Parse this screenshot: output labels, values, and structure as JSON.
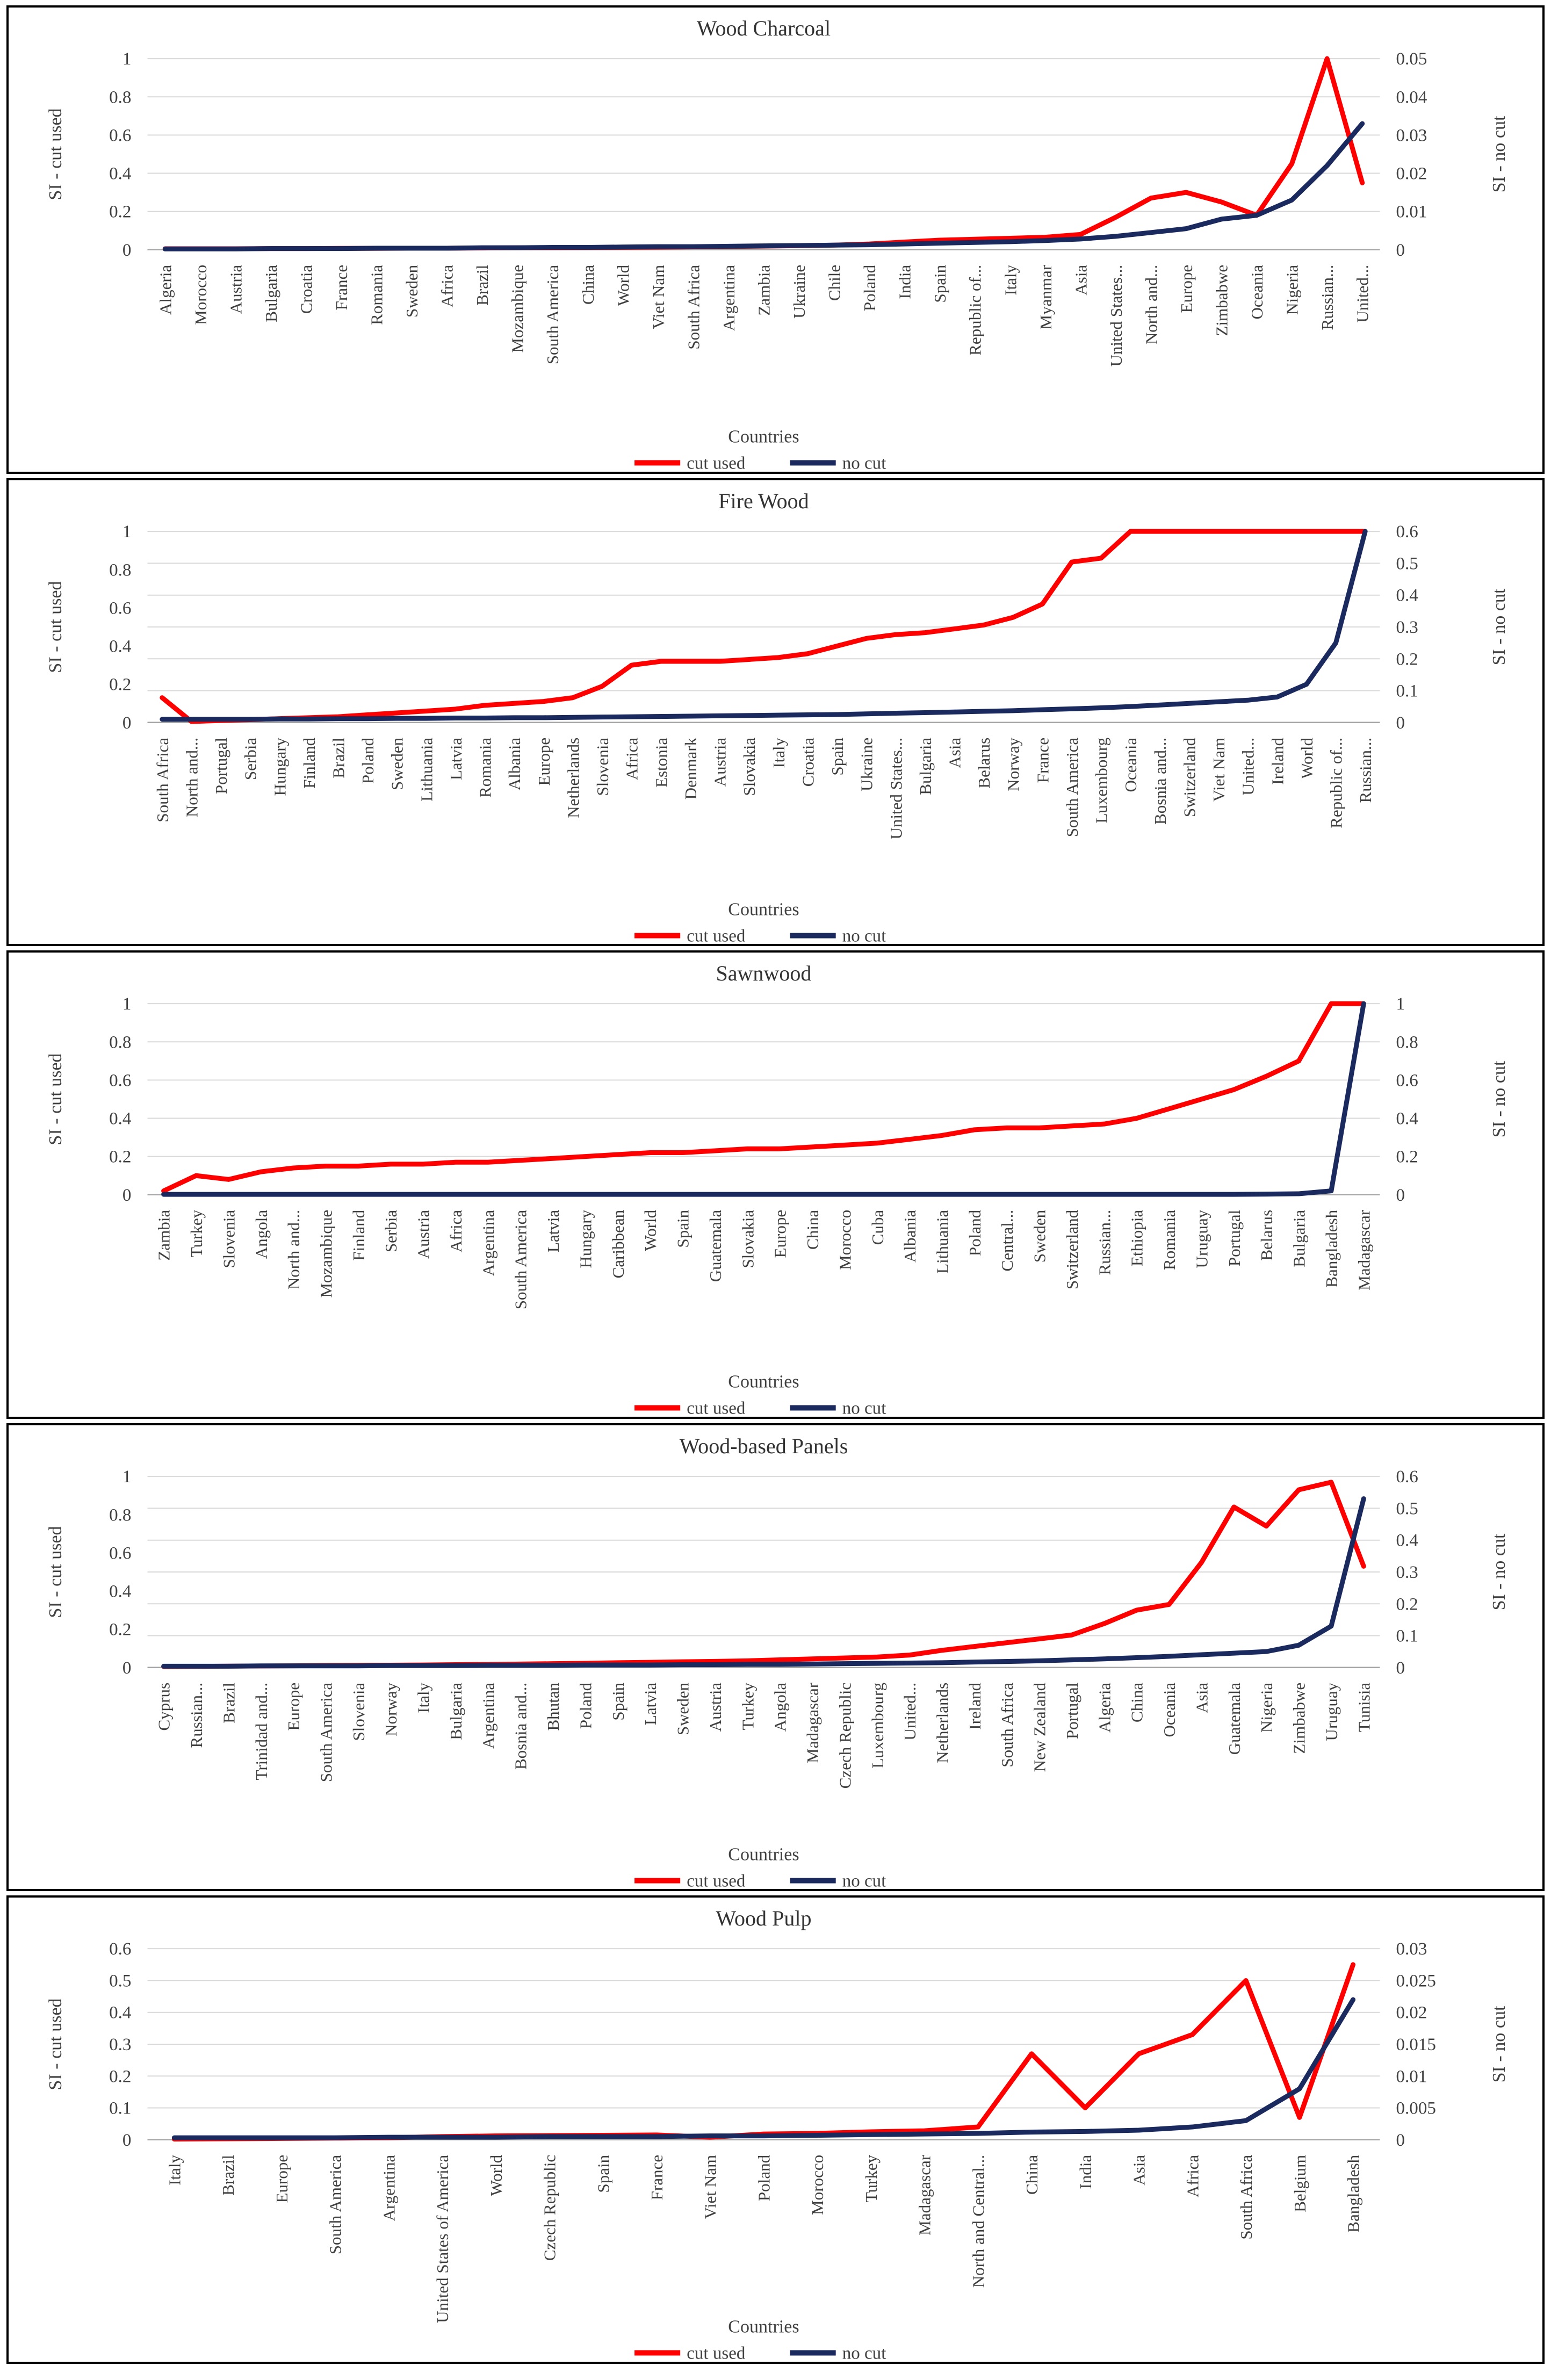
{
  "theme": {
    "background": "#ffffff",
    "panel_border": "#000000",
    "grid_color": "#d9d9d9",
    "axis_line_color": "#a6a6a6",
    "text_color": "#404040",
    "cut_used_color": "#ff0000",
    "no_cut_color": "#1b2a5e"
  },
  "chart_data": [
    {
      "type": "line",
      "title": "Wood Charcoal",
      "x_label": "Countries",
      "legend": [
        "cut used",
        "no cut"
      ],
      "left_axis": {
        "label": "SI - cut used",
        "max": 1,
        "ticks": [
          0,
          0.2,
          0.4,
          0.6,
          0.8,
          1
        ]
      },
      "right_axis": {
        "label": "SI - no cut",
        "max": 0.05,
        "ticks": [
          0,
          0.01,
          0.02,
          0.03,
          0.04,
          0.05
        ]
      },
      "categories": [
        "Algeria",
        "Morocco",
        "Austria",
        "Bulgaria",
        "Croatia",
        "France",
        "Romania",
        "Sweden",
        "Africa",
        "Brazil",
        "Mozambique",
        "South America",
        "China",
        "World",
        "Viet Nam",
        "South Africa",
        "Argentina",
        "Zambia",
        "Ukraine",
        "Chile",
        "Poland",
        "India",
        "Spain",
        "Republic of...",
        "Italy",
        "Myanmar",
        "Asia",
        "United States...",
        "North and...",
        "Europe",
        "Zimbabwe",
        "Oceania",
        "Nigeria",
        "Russian...",
        "United..."
      ],
      "series": [
        {
          "name": "cut used",
          "axis": "left",
          "color": "#ff0000",
          "values": [
            0.005,
            0.005,
            0.005,
            0.006,
            0.006,
            0.007,
            0.007,
            0.008,
            0.008,
            0.009,
            0.01,
            0.01,
            0.011,
            0.012,
            0.013,
            0.015,
            0.017,
            0.019,
            0.021,
            0.024,
            0.03,
            0.04,
            0.05,
            0.055,
            0.06,
            0.065,
            0.08,
            0.17,
            0.27,
            0.3,
            0.25,
            0.18,
            0.45,
            1,
            0.35
          ]
        },
        {
          "name": "no cut",
          "axis": "right",
          "color": "#1b2a5e",
          "values": [
            0.0002,
            0.0002,
            0.0002,
            0.0003,
            0.0003,
            0.0003,
            0.0004,
            0.0004,
            0.0004,
            0.0005,
            0.0005,
            0.0006,
            0.0006,
            0.0007,
            0.0008,
            0.0008,
            0.0009,
            0.001,
            0.0011,
            0.0012,
            0.0013,
            0.0015,
            0.0017,
            0.0019,
            0.0021,
            0.0024,
            0.0028,
            0.0035,
            0.0045,
            0.0055,
            0.008,
            0.009,
            0.013,
            0.022,
            0.033
          ]
        }
      ]
    },
    {
      "type": "line",
      "title": "Fire Wood",
      "x_label": "Countries",
      "legend": [
        "cut used",
        "no cut"
      ],
      "left_axis": {
        "label": "SI - cut used",
        "max": 1,
        "ticks": [
          0,
          0.2,
          0.4,
          0.6,
          0.8,
          1
        ]
      },
      "right_axis": {
        "label": "SI - no cut",
        "max": 0.6,
        "ticks": [
          0,
          0.1,
          0.2,
          0.3,
          0.4,
          0.5,
          0.6
        ]
      },
      "categories": [
        "South Africa",
        "North and...",
        "Portugal",
        "Serbia",
        "Hungary",
        "Finland",
        "Brazil",
        "Poland",
        "Sweden",
        "Lithuania",
        "Latvia",
        "Romania",
        "Albania",
        "Europe",
        "Netherlands",
        "Slovenia",
        "Africa",
        "Estonia",
        "Denmark",
        "Austria",
        "Slovakia",
        "Italy",
        "Croatia",
        "Spain",
        "Ukraine",
        "United States...",
        "Bulgaria",
        "Asia",
        "Belarus",
        "Norway",
        "France",
        "South America",
        "Luxembourg",
        "Oceania",
        "Bosnia and...",
        "Switzerland",
        "Viet Nam",
        "United...",
        "Ireland",
        "World",
        "Republic of...",
        "Russian..."
      ],
      "series": [
        {
          "name": "cut used",
          "axis": "left",
          "color": "#ff0000",
          "values": [
            0.13,
            0.005,
            0.01,
            0.015,
            0.02,
            0.025,
            0.03,
            0.04,
            0.05,
            0.06,
            0.07,
            0.09,
            0.1,
            0.11,
            0.13,
            0.19,
            0.3,
            0.32,
            0.32,
            0.32,
            0.33,
            0.34,
            0.36,
            0.4,
            0.44,
            0.46,
            0.47,
            0.49,
            0.51,
            0.55,
            0.62,
            0.84,
            0.86,
            1,
            1,
            1,
            1,
            1,
            1,
            1,
            1,
            1
          ]
        },
        {
          "name": "no cut",
          "axis": "right",
          "color": "#1b2a5e",
          "values": [
            0.01,
            0.01,
            0.01,
            0.01,
            0.011,
            0.011,
            0.012,
            0.012,
            0.013,
            0.013,
            0.014,
            0.014,
            0.015,
            0.015,
            0.016,
            0.017,
            0.018,
            0.019,
            0.02,
            0.021,
            0.022,
            0.023,
            0.024,
            0.025,
            0.027,
            0.029,
            0.031,
            0.033,
            0.035,
            0.037,
            0.04,
            0.043,
            0.046,
            0.05,
            0.055,
            0.06,
            0.065,
            0.07,
            0.08,
            0.12,
            0.25,
            0.6
          ]
        }
      ]
    },
    {
      "type": "line",
      "title": "Sawnwood",
      "x_label": "Countries",
      "legend": [
        "cut used",
        "no cut"
      ],
      "left_axis": {
        "label": "SI - cut used",
        "max": 1,
        "ticks": [
          0,
          0.2,
          0.4,
          0.6,
          0.8,
          1
        ]
      },
      "right_axis": {
        "label": "SI - no cut",
        "max": 1,
        "ticks": [
          0,
          0.2,
          0.4,
          0.6,
          0.8,
          1
        ]
      },
      "categories": [
        "Zambia",
        "Turkey",
        "Slovenia",
        "Angola",
        "North and...",
        "Mozambique",
        "Finland",
        "Serbia",
        "Austria",
        "Africa",
        "Argentina",
        "South America",
        "Latvia",
        "Hungary",
        "Caribbean",
        "World",
        "Spain",
        "Guatemala",
        "Slovakia",
        "Europe",
        "China",
        "Morocco",
        "Cuba",
        "Albania",
        "Lithuania",
        "Poland",
        "Central...",
        "Sweden",
        "Switzerland",
        "Russian...",
        "Ethiopia",
        "Romania",
        "Uruguay",
        "Portugal",
        "Belarus",
        "Bulgaria",
        "Bangladesh",
        "Madagascar"
      ],
      "series": [
        {
          "name": "cut used",
          "axis": "left",
          "color": "#ff0000",
          "values": [
            0.02,
            0.1,
            0.08,
            0.12,
            0.14,
            0.15,
            0.15,
            0.16,
            0.16,
            0.17,
            0.17,
            0.18,
            0.19,
            0.2,
            0.21,
            0.22,
            0.22,
            0.23,
            0.24,
            0.24,
            0.25,
            0.26,
            0.27,
            0.29,
            0.31,
            0.34,
            0.35,
            0.35,
            0.36,
            0.37,
            0.4,
            0.45,
            0.5,
            0.55,
            0.62,
            0.7,
            1,
            1
          ]
        },
        {
          "name": "no cut",
          "axis": "right",
          "color": "#1b2a5e",
          "values": [
            0.002,
            0.002,
            0.002,
            0.002,
            0.002,
            0.002,
            0.002,
            0.002,
            0.002,
            0.002,
            0.002,
            0.002,
            0.002,
            0.002,
            0.002,
            0.002,
            0.002,
            0.002,
            0.002,
            0.002,
            0.002,
            0.002,
            0.002,
            0.002,
            0.002,
            0.002,
            0.002,
            0.002,
            0.002,
            0.002,
            0.002,
            0.002,
            0.002,
            0.002,
            0.003,
            0.005,
            0.02,
            1
          ]
        }
      ]
    },
    {
      "type": "line",
      "title": "Wood-based Panels",
      "x_label": "Countries",
      "legend": [
        "cut used",
        "no cut"
      ],
      "left_axis": {
        "label": "SI - cut used",
        "max": 1,
        "ticks": [
          0,
          0.2,
          0.4,
          0.6,
          0.8,
          1
        ]
      },
      "right_axis": {
        "label": "SI - no cut",
        "max": 0.6,
        "ticks": [
          0,
          0.1,
          0.2,
          0.3,
          0.4,
          0.5,
          0.6
        ]
      },
      "categories": [
        "Cyprus",
        "Russian...",
        "Brazil",
        "Trinidad and...",
        "Europe",
        "South America",
        "Slovenia",
        "Norway",
        "Italy",
        "Bulgaria",
        "Argentina",
        "Bosnia and...",
        "Bhutan",
        "Poland",
        "Spain",
        "Latvia",
        "Sweden",
        "Austria",
        "Turkey",
        "Angola",
        "Madagascar",
        "Czech Republic",
        "Luxembourg",
        "United...",
        "Netherlands",
        "Ireland",
        "South Africa",
        "New Zealand",
        "Portugal",
        "Algeria",
        "China",
        "Oceania",
        "Asia",
        "Guatemala",
        "Nigeria",
        "Zimbabwe",
        "Uruguay",
        "Tunisia"
      ],
      "series": [
        {
          "name": "cut used",
          "axis": "left",
          "color": "#ff0000",
          "values": [
            0.005,
            0.006,
            0.007,
            0.008,
            0.009,
            0.01,
            0.011,
            0.012,
            0.013,
            0.015,
            0.016,
            0.018,
            0.02,
            0.022,
            0.025,
            0.027,
            0.03,
            0.032,
            0.035,
            0.04,
            0.045,
            0.05,
            0.055,
            0.065,
            0.09,
            0.11,
            0.13,
            0.15,
            0.17,
            0.23,
            0.3,
            0.33,
            0.55,
            0.84,
            0.74,
            0.93,
            0.97,
            0.53
          ]
        },
        {
          "name": "no cut",
          "axis": "right",
          "color": "#1b2a5e",
          "values": [
            0.004,
            0.004,
            0.004,
            0.005,
            0.005,
            0.005,
            0.005,
            0.006,
            0.006,
            0.006,
            0.007,
            0.007,
            0.007,
            0.008,
            0.008,
            0.008,
            0.009,
            0.009,
            0.01,
            0.01,
            0.011,
            0.012,
            0.013,
            0.014,
            0.015,
            0.017,
            0.019,
            0.021,
            0.024,
            0.027,
            0.031,
            0.035,
            0.04,
            0.045,
            0.05,
            0.07,
            0.13,
            0.53
          ]
        }
      ]
    },
    {
      "type": "line",
      "title": "Wood Pulp",
      "x_label": "Countries",
      "legend": [
        "cut used",
        "no cut"
      ],
      "left_axis": {
        "label": "SI - cut used",
        "max": 0.6,
        "ticks": [
          0,
          0.1,
          0.2,
          0.3,
          0.4,
          0.5,
          0.6
        ]
      },
      "right_axis": {
        "label": "SI - no cut",
        "max": 0.03,
        "ticks": [
          0,
          0.005,
          0.01,
          0.015,
          0.02,
          0.025,
          0.03
        ]
      },
      "categories": [
        "Italy",
        "Brazil",
        "Europe",
        "South America",
        "Argentina",
        "United States of America",
        "World",
        "Czech Republic",
        "Spain",
        "France",
        "Viet Nam",
        "Poland",
        "Morocco",
        "Turkey",
        "Madagascar",
        "North and Central...",
        "China",
        "India",
        "Asia",
        "Africa",
        "South Africa",
        "Belgium",
        "Bangladesh"
      ],
      "series": [
        {
          "name": "cut used",
          "axis": "left",
          "color": "#ff0000",
          "values": [
            0.002,
            0.003,
            0.004,
            0.005,
            0.006,
            0.01,
            0.012,
            0.013,
            0.014,
            0.015,
            0.008,
            0.018,
            0.02,
            0.025,
            0.028,
            0.04,
            0.27,
            0.1,
            0.27,
            0.33,
            0.5,
            0.07,
            0.55
          ]
        },
        {
          "name": "no cut",
          "axis": "right",
          "color": "#1b2a5e",
          "values": [
            0.0003,
            0.0003,
            0.0003,
            0.0003,
            0.0004,
            0.0004,
            0.0004,
            0.0005,
            0.0005,
            0.0005,
            0.0006,
            0.0006,
            0.0007,
            0.0008,
            0.0009,
            0.001,
            0.0012,
            0.0013,
            0.0015,
            0.002,
            0.003,
            0.008,
            0.022
          ]
        }
      ]
    }
  ]
}
